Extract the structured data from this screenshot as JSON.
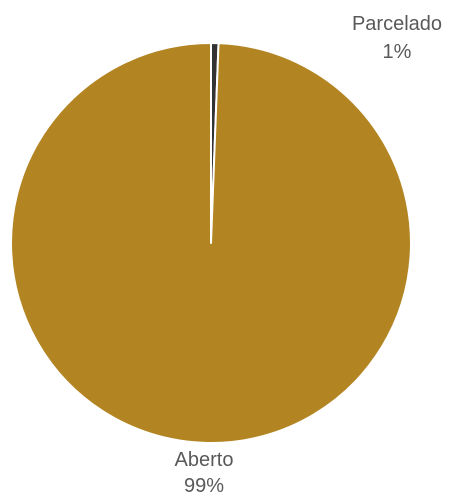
{
  "chart_data": {
    "type": "pie",
    "title": "",
    "slices": [
      {
        "label": "Parcelado",
        "percent_label": "1%",
        "value": 0.6,
        "color": "#333333"
      },
      {
        "label": "Aberto",
        "percent_label": "99%",
        "value": 99.4,
        "color": "#b38422"
      }
    ],
    "legend": "none",
    "data_labels": "outside"
  }
}
